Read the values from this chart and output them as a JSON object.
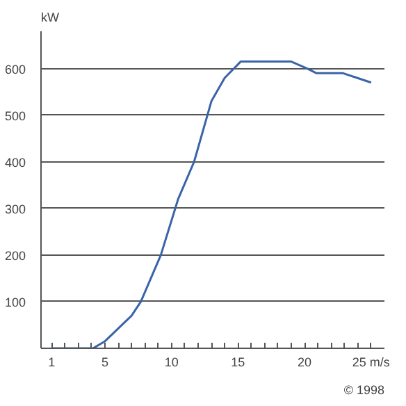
{
  "chart_data": {
    "type": "line",
    "ylabel": "kW",
    "x": [
      1,
      4.1,
      5,
      7,
      7.7,
      9.2,
      10.5,
      11.7,
      13,
      14,
      15.2,
      17,
      19,
      20.2,
      20.9,
      22.9,
      25
    ],
    "series": [
      {
        "color": "#3a64a8",
        "values": [
          0,
          0,
          15,
          70,
          100,
          200,
          320,
          400,
          530,
          580,
          615,
          615,
          615,
          600,
          590,
          590,
          570
        ]
      }
    ],
    "xlim": [
      0.2,
      26
    ],
    "xticks": [
      1,
      {
        "value": 2,
        "label": null
      },
      {
        "value": 3,
        "label": null
      },
      {
        "value": 4,
        "label": null
      },
      5,
      {
        "value": 6,
        "label": null
      },
      {
        "value": 7,
        "label": null
      },
      {
        "value": 8,
        "label": null
      },
      {
        "value": 9,
        "label": null
      },
      10,
      {
        "value": 11,
        "label": null
      },
      {
        "value": 12,
        "label": null
      },
      {
        "value": 13,
        "label": null
      },
      {
        "value": 14,
        "label": null
      },
      15,
      {
        "value": 16,
        "label": null
      },
      {
        "value": 17,
        "label": null
      },
      {
        "value": 18,
        "label": null
      },
      {
        "value": 19,
        "label": null
      },
      20,
      {
        "value": 21,
        "label": null
      },
      {
        "value": 22,
        "label": null
      },
      {
        "value": 23,
        "label": null
      },
      {
        "value": 24,
        "label": null
      },
      {
        "value": 25,
        "label": "25 m/s"
      }
    ],
    "ylim": [
      0,
      680
    ],
    "yticks": [
      100,
      200,
      300,
      400,
      500,
      600
    ],
    "grid": "y",
    "line_style": "solid",
    "marker": "none",
    "annotations": [
      "© 1998"
    ]
  }
}
